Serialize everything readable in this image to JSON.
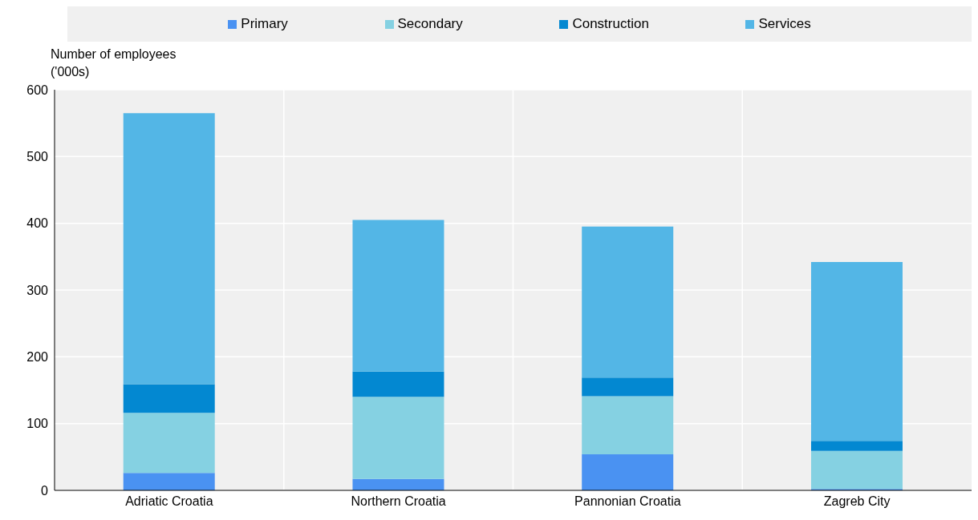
{
  "chart_data": {
    "type": "bar",
    "stacked": true,
    "ylabel": "Number of employees ('000s)",
    "categories": [
      "Adriatic Croatia",
      "Northern Croatia",
      "Pannonian Croatia",
      "Zagreb City"
    ],
    "series": [
      {
        "name": "Primary",
        "color": "#4a92f2",
        "values": [
          26,
          17,
          54,
          2
        ]
      },
      {
        "name": "Secondary",
        "color": "#85d1e2",
        "values": [
          90,
          123,
          87,
          57
        ]
      },
      {
        "name": "Construction",
        "color": "#0388d1",
        "values": [
          43,
          38,
          28,
          15
        ]
      },
      {
        "name": "Services",
        "color": "#53b6e6",
        "values": [
          406,
          227,
          226,
          268
        ]
      }
    ],
    "ylim": [
      0,
      600
    ],
    "yticks": [
      0,
      100,
      200,
      300,
      400,
      500,
      600
    ],
    "grid": true,
    "legend": "top"
  }
}
